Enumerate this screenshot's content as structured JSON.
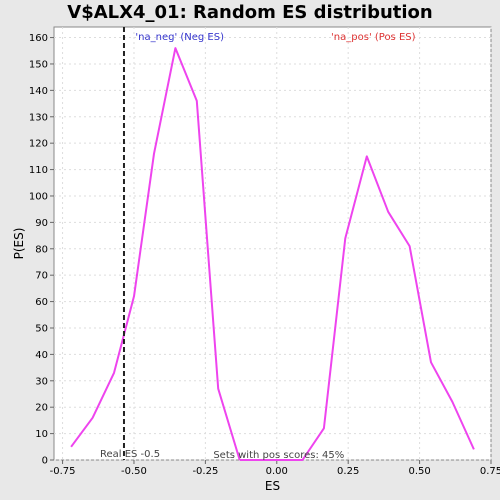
{
  "chart_data": {
    "type": "line",
    "title": "V$ALX4_01: Random ES distribution",
    "xlabel": "ES",
    "ylabel": "P(ES)",
    "xlim": [
      -0.78,
      0.75
    ],
    "ylim": [
      0,
      164
    ],
    "x_ticks": [
      -0.75,
      -0.5,
      -0.25,
      0,
      0.25,
      0.5,
      0.75
    ],
    "x_tick_labels": [
      "-0.75",
      "-0.50",
      "-0.25",
      "0.00",
      "0.25",
      "0.50",
      "0.75"
    ],
    "y_ticks": [
      0,
      10,
      20,
      30,
      40,
      50,
      60,
      70,
      80,
      90,
      100,
      110,
      120,
      130,
      140,
      150,
      160
    ],
    "y_tick_labels": [
      "0",
      "10",
      "20",
      "30",
      "40",
      "50",
      "60",
      "70",
      "80",
      "90",
      "100",
      "110",
      "120",
      "130",
      "140",
      "150",
      "160"
    ],
    "grid": true,
    "series": [
      {
        "name": "'na_neg' (Neg ES)",
        "color": "#ee44ee",
        "legend_color": "#3333cc",
        "x": [
          -0.72,
          -0.645,
          -0.57,
          -0.5,
          -0.43,
          -0.355,
          -0.28,
          -0.205,
          -0.13
        ],
        "y": [
          5,
          16,
          33,
          62,
          116,
          156,
          136,
          27,
          0
        ]
      },
      {
        "name": "'na_pos' (Pos ES)",
        "color": "#ee44ee",
        "legend_color": "#dd3333",
        "x": [
          -0.13,
          0.09,
          0.165,
          0.24,
          0.315,
          0.39,
          0.465,
          0.54,
          0.615,
          0.69
        ],
        "y": [
          0,
          0,
          12,
          84,
          115,
          94,
          81,
          37,
          22,
          4
        ]
      }
    ],
    "annotations": [
      {
        "type": "vline",
        "x": -0.535,
        "label": "Real ES -0.5"
      },
      {
        "type": "text",
        "label": "Sets with pos scores: 45%"
      }
    ]
  }
}
